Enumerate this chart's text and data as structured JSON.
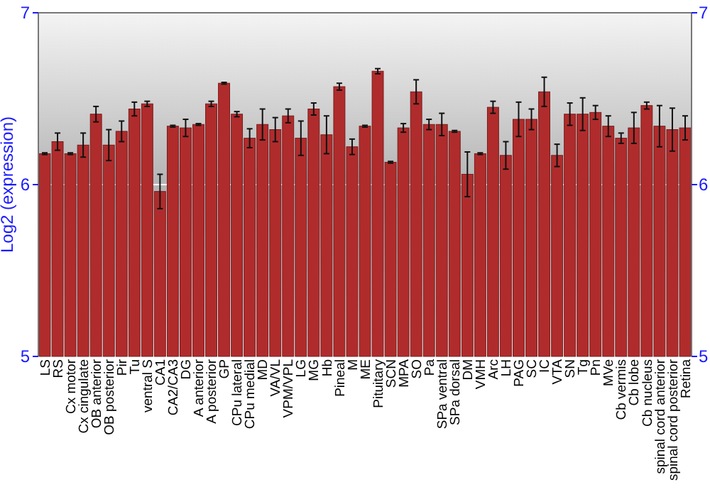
{
  "chart_data": {
    "type": "bar",
    "ylabel": "Log2 (expression)",
    "categories": [
      "LS",
      "RS",
      "Cx motor",
      "Cx cingulate",
      "OB anterior",
      "OB posterior",
      "Pir",
      "Tu",
      "ventral S",
      "CA1",
      "CA2/CA3",
      "DG",
      "A anterior",
      "A posterior",
      "GP",
      "CPu lateral",
      "CPu medial",
      "MD",
      "VA/VL",
      "VPM/VPL",
      "LG",
      "MG",
      "Hb",
      "Pineal",
      "M",
      "ME",
      "Pituitary",
      "SCN",
      "MPA",
      "SO",
      "Pa",
      "SPa ventral",
      "SPa dorsal",
      "DM",
      "VMH",
      "Arc",
      "LH",
      "PAG",
      "SC",
      "IC",
      "VTA",
      "SN",
      "Tg",
      "Pn",
      "MVe",
      "Cb vermis",
      "Cb lobe",
      "Cb nucleus",
      "spinal cord anterior",
      "spinal cord posterior",
      "Retina"
    ],
    "series": [
      {
        "color": "#b02c2c",
        "values": [
          6.18,
          6.25,
          6.18,
          6.23,
          6.41,
          6.23,
          6.31,
          6.44,
          6.47,
          5.96,
          6.34,
          6.33,
          6.35,
          6.47,
          6.59,
          6.41,
          6.27,
          6.35,
          6.32,
          6.4,
          6.27,
          6.44,
          6.29,
          6.57,
          6.22,
          6.34,
          6.66,
          6.13,
          6.33,
          6.54,
          6.35,
          6.35,
          6.31,
          6.06,
          6.18,
          6.45,
          6.17,
          6.38,
          6.38,
          6.54,
          6.17,
          6.41,
          6.41,
          6.42,
          6.34,
          6.27,
          6.33,
          6.46,
          6.34,
          6.32,
          6.33
        ],
        "errors": [
          0.005,
          0.05,
          0.005,
          0.07,
          0.045,
          0.09,
          0.06,
          0.04,
          0.015,
          0.1,
          0.005,
          0.05,
          0.005,
          0.015,
          0.005,
          0.015,
          0.055,
          0.09,
          0.07,
          0.04,
          0.1,
          0.035,
          0.11,
          0.02,
          0.045,
          0.005,
          0.015,
          0.005,
          0.025,
          0.07,
          0.03,
          0.065,
          0.005,
          0.13,
          0.005,
          0.035,
          0.08,
          0.1,
          0.06,
          0.085,
          0.065,
          0.065,
          0.095,
          0.04,
          0.06,
          0.03,
          0.09,
          0.02,
          0.12,
          0.125,
          0.07
        ]
      }
    ],
    "ylim": [
      5,
      7
    ],
    "yticks": [
      5,
      6,
      7
    ],
    "y2lim": [
      5,
      7
    ],
    "y2ticks": [
      5,
      6,
      7
    ],
    "grid": "y"
  }
}
